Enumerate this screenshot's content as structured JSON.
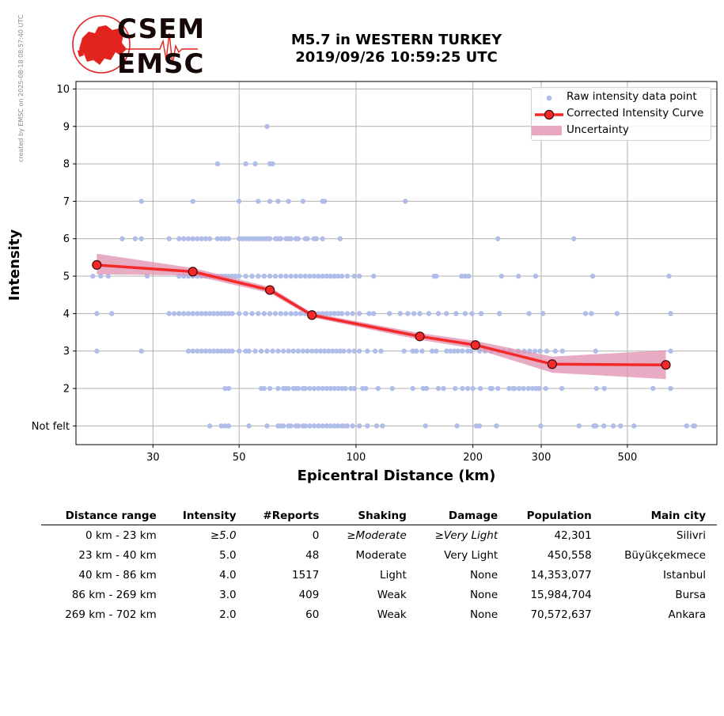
{
  "credit": "created by EMSC on 2025-08-18 08:57:40 UTC",
  "logo": {
    "line1": "CSEM",
    "line2": "EMSC",
    "color": "#e3231d"
  },
  "title": {
    "line1": "M5.7 in WESTERN TURKEY",
    "line2": "2019/09/26 10:59:25 UTC"
  },
  "legend": {
    "raw": "Raw intensity data point",
    "corrected": "Corrected Intensity Curve",
    "uncertainty": "Uncertainty"
  },
  "colors": {
    "raw": "#b0bde8",
    "curve": "#f42929",
    "band": "#e08fb0",
    "grid": "#b0b0b0"
  },
  "chart_data": {
    "type": "scatter",
    "xlabel": "Epicentral Distance (km)",
    "ylabel": "Intensity",
    "x_scale": "log",
    "xlim": [
      19,
      850
    ],
    "ylim": [
      0.5,
      10.2
    ],
    "xticks": [
      30,
      50,
      100,
      200,
      300,
      500
    ],
    "yticks": [
      {
        "value": 1,
        "label": "Not felt"
      },
      {
        "value": 2,
        "label": "2"
      },
      {
        "value": 3,
        "label": "3"
      },
      {
        "value": 4,
        "label": "4"
      },
      {
        "value": 5,
        "label": "5"
      },
      {
        "value": 6,
        "label": "6"
      },
      {
        "value": 7,
        "label": "7"
      },
      {
        "value": 8,
        "label": "8"
      },
      {
        "value": 9,
        "label": "9"
      },
      {
        "value": 10,
        "label": "10"
      }
    ],
    "grid": true,
    "legend_position": "top-right",
    "series": [
      {
        "name": "Corrected Intensity Curve",
        "x": [
          21.5,
          38,
          60,
          77,
          146,
          203,
          320,
          628
        ],
        "y": [
          5.3,
          5.12,
          4.63,
          3.96,
          3.39,
          3.16,
          2.65,
          2.63
        ]
      },
      {
        "name": "Uncertainty",
        "x": [
          21.5,
          38,
          60,
          77,
          146,
          203,
          320,
          628
        ],
        "lower": [
          5.05,
          5.02,
          4.55,
          3.9,
          3.3,
          3.06,
          2.42,
          2.25
        ],
        "upper": [
          5.6,
          5.22,
          4.71,
          4.02,
          3.48,
          3.27,
          2.85,
          3.02
        ]
      }
    ],
    "raw_points": [
      {
        "y": 1,
        "x": [
          42,
          45,
          46,
          47,
          53,
          59,
          63,
          64,
          65,
          67,
          68,
          70,
          71,
          73,
          74,
          76,
          78,
          80,
          82,
          84,
          86,
          88,
          90,
          92,
          93,
          95,
          98,
          102,
          107,
          113,
          117,
          151,
          182,
          204,
          208,
          230,
          299,
          375,
          410,
          415,
          435,
          460,
          480,
          520,
          710,
          740,
          745
        ]
      },
      {
        "y": 2,
        "x": [
          46,
          47,
          57,
          58,
          60,
          63,
          65,
          66,
          67,
          69,
          70,
          71,
          73,
          74,
          76,
          78,
          80,
          82,
          84,
          86,
          88,
          90,
          92,
          94,
          97,
          99,
          104,
          106,
          114,
          124,
          140,
          149,
          152,
          163,
          168,
          180,
          188,
          194,
          200,
          209,
          222,
          224,
          232,
          248,
          254,
          256,
          263,
          270,
          278,
          285,
          291,
          296,
          308,
          339,
          416,
          436,
          582,
          646
        ]
      },
      {
        "y": 3,
        "x": [
          21.5,
          28,
          37,
          38,
          39,
          40,
          41,
          42,
          43,
          44,
          45,
          46,
          47,
          48,
          50,
          52,
          53,
          55,
          57,
          59,
          61,
          63,
          65,
          67,
          69,
          71,
          73,
          75,
          77,
          79,
          81,
          83,
          85,
          87,
          89,
          91,
          93,
          96,
          99,
          102,
          107,
          112,
          116,
          133,
          140,
          143,
          148,
          157,
          161,
          171,
          175,
          179,
          183,
          188,
          194,
          198,
          208,
          215,
          223,
          233,
          240,
          249,
          262,
          271,
          280,
          289,
          298,
          310,
          326,
          340,
          414,
          646
        ]
      },
      {
        "y": 4,
        "x": [
          21.5,
          23.5,
          33,
          34,
          35,
          36,
          37,
          38,
          39,
          40,
          41,
          42,
          43,
          44,
          45,
          46,
          47,
          48,
          50,
          52,
          54,
          56,
          58,
          60,
          62,
          64,
          66,
          68,
          70,
          72,
          74,
          76,
          78,
          80,
          82,
          84,
          86,
          88,
          90,
          92,
          95,
          98,
          102,
          108,
          111,
          122,
          130,
          136,
          141,
          146,
          154,
          163,
          171,
          181,
          191,
          199,
          210,
          234,
          279,
          303,
          390,
          404,
          470,
          646
        ]
      },
      {
        "y": 5,
        "x": [
          21,
          22,
          23,
          29,
          35,
          36,
          37,
          38,
          39,
          40,
          41,
          42,
          43,
          44,
          45,
          46,
          47,
          48,
          49,
          50,
          52,
          54,
          56,
          58,
          60,
          62,
          64,
          66,
          68,
          70,
          72,
          74,
          76,
          78,
          80,
          82,
          84,
          86,
          88,
          90,
          92,
          95,
          99,
          102,
          111,
          159,
          161,
          187,
          191,
          195,
          237,
          262,
          290,
          407,
          640
        ]
      },
      {
        "y": 6,
        "x": [
          25,
          27,
          28,
          33,
          35,
          36,
          37,
          38,
          39,
          40,
          41,
          42,
          44,
          45,
          46,
          47,
          50,
          51,
          52,
          53,
          54,
          55,
          56,
          57,
          58,
          59,
          60,
          62,
          63,
          64,
          66,
          67,
          68,
          70,
          71,
          74,
          75,
          78,
          79,
          82,
          91,
          232,
          364
        ]
      },
      {
        "y": 7,
        "x": [
          28,
          38,
          50,
          56,
          60,
          63,
          67,
          73,
          82,
          83,
          134
        ]
      },
      {
        "y": 8,
        "x": [
          44,
          52,
          55,
          60,
          61
        ]
      },
      {
        "y": 9,
        "x": [
          59
        ]
      }
    ]
  },
  "table": {
    "headers": [
      "Distance range",
      "Intensity",
      "#Reports",
      "Shaking",
      "Damage",
      "Population",
      "Main city"
    ],
    "rows": [
      [
        "0 km -   23 km",
        "≥5.0",
        "0",
        "≥Moderate",
        "≥Very Light",
        "42,301",
        "Silivri"
      ],
      [
        "23 km -   40 km",
        "5.0",
        "48",
        "Moderate",
        "Very Light",
        "450,558",
        "Büyükçekmece"
      ],
      [
        "40 km -   86 km",
        "4.0",
        "1517",
        "Light",
        "None",
        "14,353,077",
        "Istanbul"
      ],
      [
        "86 km -  269 km",
        "3.0",
        "409",
        "Weak",
        "None",
        "15,984,704",
        "Bursa"
      ],
      [
        "269 km -  702 km",
        "2.0",
        "60",
        "Weak",
        "None",
        "70,572,637",
        "Ankara"
      ]
    ]
  }
}
